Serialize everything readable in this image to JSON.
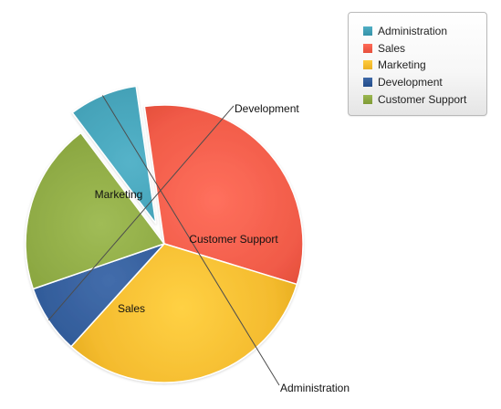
{
  "chart_data": {
    "type": "pie",
    "title": "",
    "categories": [
      "Administration",
      "Sales",
      "Marketing",
      "Development",
      "Customer Support"
    ],
    "values": [
      8,
      32,
      32,
      8,
      20
    ],
    "colors": [
      "#3f9db3",
      "#f05a47",
      "#f4bb2e",
      "#2d5795",
      "#8aa640"
    ],
    "exploded": [
      "Administration"
    ],
    "slice_order_clockwise_from_start": [
      "Administration",
      "Sales",
      "Marketing",
      "Development",
      "Customer Support"
    ],
    "labels": [
      "Administration",
      "Sales",
      "Marketing",
      "Development",
      "Customer Support"
    ],
    "legend": {
      "placement": "top-right",
      "items": [
        "Administration",
        "Sales",
        "Marketing",
        "Development",
        "Customer Support"
      ]
    }
  }
}
